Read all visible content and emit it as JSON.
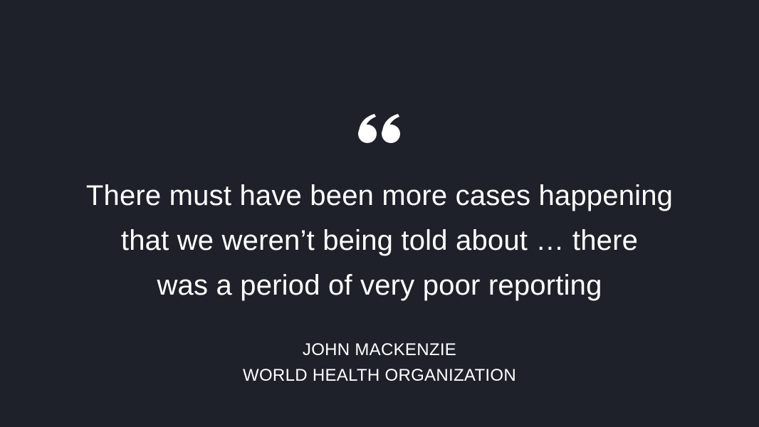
{
  "colors": {
    "background": "#1e212a",
    "text": "#ffffff"
  },
  "quote": {
    "icon": "open-quote-icon",
    "lines": [
      "There must have been more cases happening",
      "that we weren’t being told about … there",
      "was a period of very poor reporting"
    ]
  },
  "attribution": {
    "name": "JOHN MACKENZIE",
    "organization": "WORLD HEALTH ORGANIZATION"
  }
}
